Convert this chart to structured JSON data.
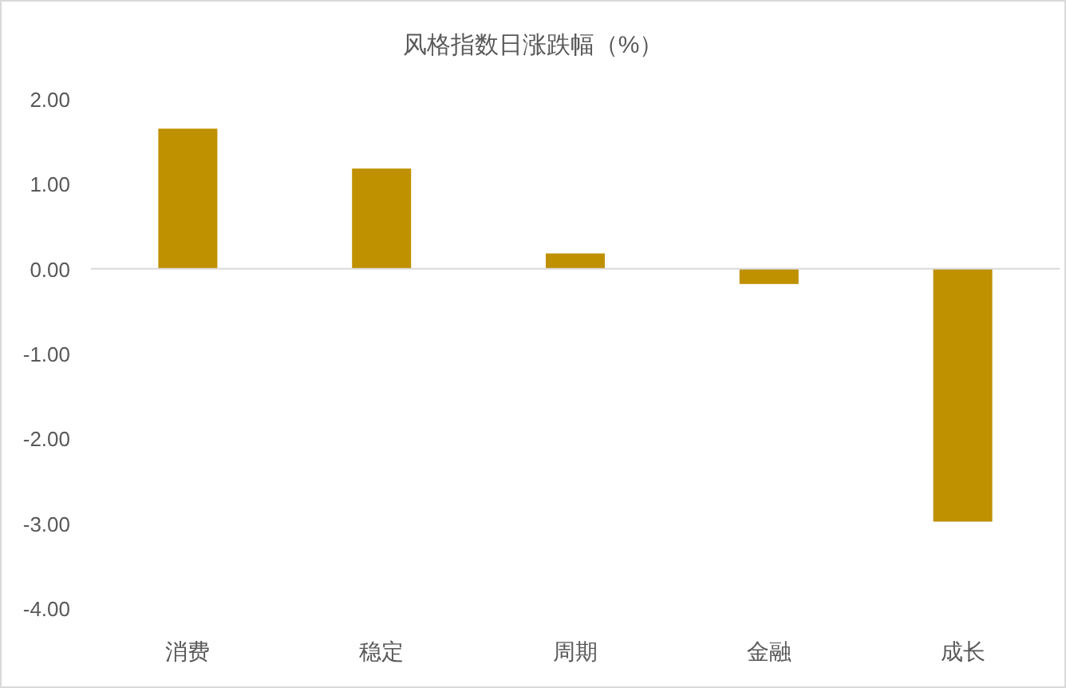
{
  "chart_data": {
    "type": "bar",
    "title": "风格指数日涨跌幅（%）",
    "categories": [
      "消费",
      "稳定",
      "周期",
      "金融",
      "成长"
    ],
    "values": [
      1.65,
      1.18,
      0.18,
      -0.18,
      -2.98
    ],
    "color": "#bf9000",
    "ylim": [
      -4,
      2
    ],
    "yticks": [
      {
        "value": 2,
        "label": "2.00"
      },
      {
        "value": 1,
        "label": "1.00"
      },
      {
        "value": 0,
        "label": "0.00"
      },
      {
        "value": -1,
        "label": "-1.00"
      },
      {
        "value": -2,
        "label": "-2.00"
      },
      {
        "value": -3,
        "label": "-3.00"
      },
      {
        "value": -4,
        "label": "-4.00"
      }
    ]
  }
}
